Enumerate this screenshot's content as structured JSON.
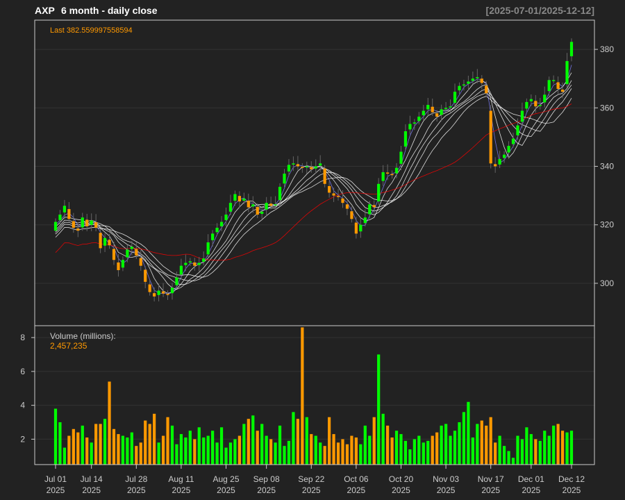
{
  "header": {
    "symbol": "AXP",
    "subtitle": "6 month - daily close",
    "date_range": "[2025-07-01/2025-12-12]"
  },
  "colors": {
    "background": "#222222",
    "panel": "#222222",
    "border": "#cccccc",
    "grid": "#333333",
    "text": "#cccccc",
    "up": "#00ff00",
    "down": "#ff9900",
    "last_label": "#ff9900",
    "ma": "#ffffff",
    "ma_slow": "#ff0000",
    "ma_fast": "#8080ff"
  },
  "chart_data": [
    {
      "type": "candlestick",
      "title": "AXP  6 month - daily close",
      "annotation": "Last 382.559997558594",
      "dates": [
        "2025-07-01",
        "2025-07-02",
        "2025-07-03",
        "2025-07-07",
        "2025-07-08",
        "2025-07-09",
        "2025-07-10",
        "2025-07-11",
        "2025-07-14",
        "2025-07-15",
        "2025-07-16",
        "2025-07-17",
        "2025-07-18",
        "2025-07-21",
        "2025-07-22",
        "2025-07-23",
        "2025-07-24",
        "2025-07-25",
        "2025-07-28",
        "2025-07-29",
        "2025-07-30",
        "2025-07-31",
        "2025-08-01",
        "2025-08-04",
        "2025-08-05",
        "2025-08-06",
        "2025-08-07",
        "2025-08-08",
        "2025-08-11",
        "2025-08-12",
        "2025-08-13",
        "2025-08-14",
        "2025-08-15",
        "2025-08-18",
        "2025-08-19",
        "2025-08-20",
        "2025-08-21",
        "2025-08-22",
        "2025-08-25",
        "2025-08-26",
        "2025-08-27",
        "2025-08-28",
        "2025-08-29",
        "2025-09-02",
        "2025-09-03",
        "2025-09-04",
        "2025-09-05",
        "2025-09-08",
        "2025-09-09",
        "2025-09-10",
        "2025-09-11",
        "2025-09-12",
        "2025-09-15",
        "2025-09-16",
        "2025-09-17",
        "2025-09-18",
        "2025-09-19",
        "2025-09-22",
        "2025-09-23",
        "2025-09-24",
        "2025-09-25",
        "2025-09-26",
        "2025-09-29",
        "2025-09-30",
        "2025-10-01",
        "2025-10-02",
        "2025-10-03",
        "2025-10-06",
        "2025-10-07",
        "2025-10-08",
        "2025-10-09",
        "2025-10-10",
        "2025-10-13",
        "2025-10-14",
        "2025-10-15",
        "2025-10-16",
        "2025-10-17",
        "2025-10-20",
        "2025-10-21",
        "2025-10-22",
        "2025-10-23",
        "2025-10-24",
        "2025-10-27",
        "2025-10-28",
        "2025-10-29",
        "2025-10-30",
        "2025-10-31",
        "2025-11-03",
        "2025-11-04",
        "2025-11-05",
        "2025-11-06",
        "2025-11-07",
        "2025-11-10",
        "2025-11-11",
        "2025-11-12",
        "2025-11-13",
        "2025-11-14",
        "2025-11-17",
        "2025-11-18",
        "2025-11-19",
        "2025-11-20",
        "2025-11-21",
        "2025-11-24",
        "2025-11-25",
        "2025-11-26",
        "2025-11-28",
        "2025-12-01",
        "2025-12-02",
        "2025-12-03",
        "2025-12-04",
        "2025-12-05",
        "2025-12-08",
        "2025-12-09",
        "2025-12-10",
        "2025-12-11",
        "2025-12-12"
      ],
      "close": [
        321.0,
        323.5,
        326.5,
        322.0,
        319.0,
        318.0,
        322.5,
        319.5,
        321.5,
        319.0,
        312.0,
        315.5,
        313.0,
        308.0,
        304.5,
        308.0,
        311.5,
        312.5,
        309.5,
        306.0,
        300.5,
        297.0,
        295.5,
        297.5,
        296.5,
        296.0,
        298.5,
        302.0,
        306.0,
        307.0,
        307.5,
        306.0,
        307.0,
        308.5,
        314.0,
        317.0,
        319.0,
        321.0,
        323.5,
        327.5,
        330.5,
        328.0,
        329.0,
        326.0,
        327.0,
        323.5,
        324.5,
        327.5,
        326.5,
        327.0,
        333.0,
        337.5,
        340.5,
        341.0,
        340.0,
        339.5,
        340.0,
        339.0,
        340.0,
        341.0,
        334.0,
        331.0,
        330.0,
        329.5,
        327.5,
        325.5,
        322.0,
        317.0,
        320.0,
        322.5,
        327.0,
        326.0,
        334.0,
        338.0,
        337.5,
        337.0,
        339.5,
        345.0,
        352.0,
        354.5,
        355.0,
        357.0,
        359.0,
        361.0,
        358.5,
        357.0,
        359.5,
        360.0,
        360.5,
        365.5,
        367.5,
        368.0,
        369.0,
        370.0,
        370.5,
        368.5,
        365.0,
        341.0,
        340.0,
        342.5,
        344.0,
        347.0,
        349.5,
        354.0,
        359.0,
        362.0,
        363.0,
        360.5,
        361.0,
        364.5,
        369.5,
        369.5,
        366.5,
        365.5,
        376.0,
        382.56
      ],
      "volume_panel": {
        "label": "Volume (millions):",
        "last_volume": "2,457,235",
        "volume": [
          3.8,
          3.0,
          1.5,
          2.2,
          2.6,
          2.4,
          2.8,
          2.1,
          1.8,
          2.9,
          2.9,
          3.2,
          5.4,
          2.6,
          2.3,
          2.2,
          2.1,
          2.4,
          1.6,
          1.8,
          3.1,
          2.9,
          3.5,
          1.8,
          2.2,
          3.3,
          2.8,
          1.7,
          2.3,
          2.1,
          2.5,
          2.0,
          2.7,
          2.1,
          2.2,
          2.5,
          1.8,
          2.7,
          1.5,
          1.8,
          2.0,
          2.2,
          2.9,
          3.2,
          3.4,
          2.5,
          2.9,
          2.2,
          2.0,
          1.8,
          2.8,
          1.6,
          1.9,
          3.6,
          3.2,
          8.6,
          3.3,
          2.3,
          2.2,
          1.8,
          1.6,
          3.3,
          2.3,
          1.8,
          2.0,
          1.7,
          2.2,
          2.1,
          1.7,
          2.8,
          2.2,
          3.3,
          7.0,
          3.5,
          2.8,
          2.1,
          2.5,
          2.3,
          1.9,
          1.4,
          2.0,
          2.2,
          1.8,
          1.9,
          2.2,
          2.4,
          2.8,
          2.9,
          2.2,
          2.5,
          3.0,
          3.6,
          4.2,
          2.1,
          2.9,
          3.1,
          2.8,
          3.3,
          1.8,
          2.2,
          1.6,
          1.3,
          0.9,
          2.2,
          2.0,
          2.7,
          2.3,
          2.0,
          1.9,
          2.5,
          2.2,
          2.8,
          2.9,
          2.5,
          2.4,
          2.5
        ],
        "y_ticks": [
          2,
          4,
          6,
          8
        ],
        "ylim": [
          0.5,
          8.7
        ]
      },
      "x_ticks": [
        {
          "date": "2025-07-01",
          "label": "Jul 01",
          "year": "2025"
        },
        {
          "date": "2025-07-14",
          "label": "Jul 14",
          "year": "2025"
        },
        {
          "date": "2025-07-28",
          "label": "Jul 28",
          "year": "2025"
        },
        {
          "date": "2025-08-11",
          "label": "Aug 11",
          "year": "2025"
        },
        {
          "date": "2025-08-25",
          "label": "Aug 25",
          "year": "2025"
        },
        {
          "date": "2025-09-08",
          "label": "Sep 08",
          "year": "2025"
        },
        {
          "date": "2025-09-22",
          "label": "Sep 22",
          "year": "2025"
        },
        {
          "date": "2025-10-06",
          "label": "Oct 06",
          "year": "2025"
        },
        {
          "date": "2025-10-20",
          "label": "Oct 20",
          "year": "2025"
        },
        {
          "date": "2025-11-03",
          "label": "Nov 03",
          "year": "2025"
        },
        {
          "date": "2025-11-17",
          "label": "Nov 17",
          "year": "2025"
        },
        {
          "date": "2025-12-01",
          "label": "Dec 01",
          "year": "2025"
        },
        {
          "date": "2025-12-12",
          "label": "Dec 12",
          "year": "2025"
        }
      ],
      "y_ticks": [
        300,
        320,
        340,
        360,
        380
      ],
      "ylim": [
        285.5,
        390
      ],
      "grid": true,
      "moving_averages": [
        3,
        5,
        8,
        10,
        12,
        15,
        30
      ]
    }
  ]
}
